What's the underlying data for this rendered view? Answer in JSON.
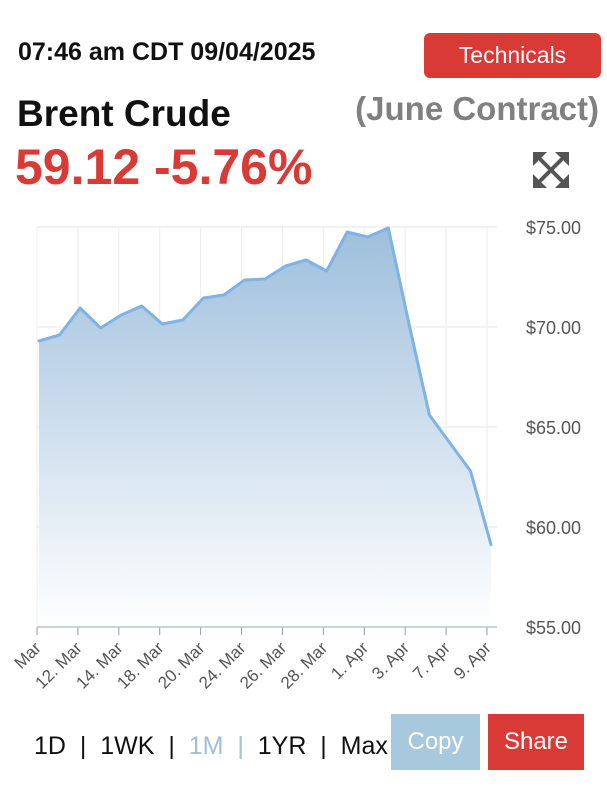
{
  "header": {
    "timestamp": "07:46 am CDT 09/04/2025",
    "technicals_label": "Technicals",
    "title": "Brent Crude",
    "contract": "(June Contract)",
    "price_change": "59.12 -5.76%",
    "expand_icon": "expand-arrows-icon"
  },
  "ranges": {
    "items": [
      "1D",
      "1WK",
      "1M",
      "1YR",
      "Max"
    ],
    "active": "1M"
  },
  "buttons": {
    "copy_label": "Copy",
    "share_label": "Share"
  },
  "colors": {
    "accent_red": "#d93a35",
    "line_blue": "#7fb2e5",
    "copy_blue": "#a8c8dd"
  },
  "chart_data": {
    "type": "area",
    "x_tick_labels": [
      "Mar",
      "12. Mar",
      "14. Mar",
      "18. Mar",
      "20. Mar",
      "24. Mar",
      "26. Mar",
      "28. Mar",
      "1. Apr",
      "3. Apr",
      "7. Apr",
      "9. Apr"
    ],
    "x": [
      "10. Mar",
      "11. Mar",
      "12. Mar",
      "13. Mar",
      "14. Mar",
      "17. Mar",
      "18. Mar",
      "19. Mar",
      "20. Mar",
      "21. Mar",
      "24. Mar",
      "25. Mar",
      "26. Mar",
      "27. Mar",
      "28. Mar",
      "31. Mar",
      "1. Apr",
      "2. Apr",
      "3. Apr",
      "4. Apr",
      "7. Apr",
      "8. Apr",
      "9. Apr"
    ],
    "series": [
      {
        "values": [
          69.3,
          69.6,
          70.95,
          69.95,
          70.6,
          71.05,
          70.15,
          70.35,
          71.45,
          71.6,
          72.35,
          72.4,
          73.05,
          73.35,
          72.8,
          74.75,
          74.5,
          74.95,
          70.2,
          65.6,
          64.2,
          62.8,
          59.12
        ]
      }
    ],
    "y_tick_labels": [
      "$75.00",
      "$70.00",
      "$65.00",
      "$60.00",
      "$55.00"
    ],
    "ylim": [
      55,
      75
    ],
    "grid": true,
    "title": "",
    "xlabel": "",
    "ylabel": ""
  }
}
